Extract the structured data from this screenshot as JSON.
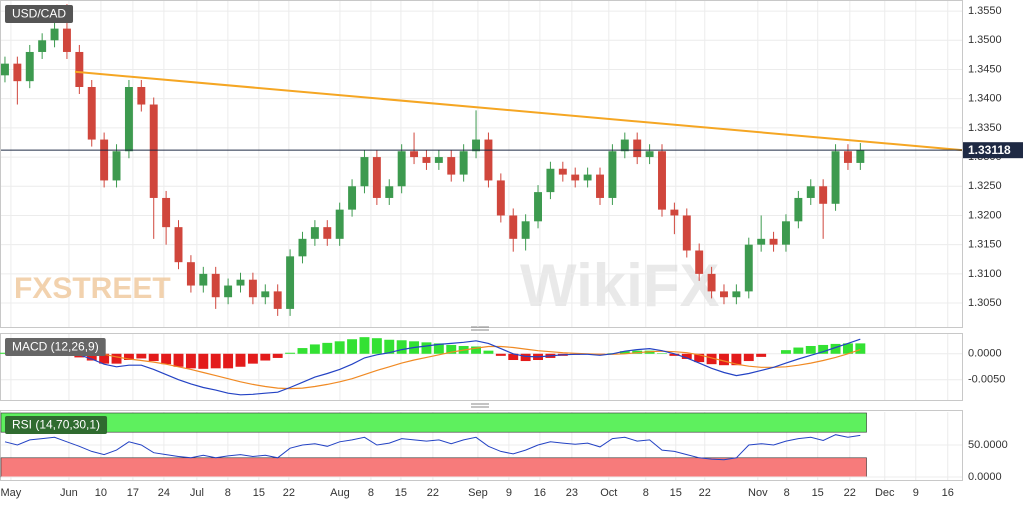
{
  "chart_data": [
    {
      "type": "candlestick",
      "title": "USD/CAD",
      "open": [
        1.344,
        1.346,
        1.343,
        1.348,
        1.35,
        1.352,
        1.348,
        1.342,
        1.333,
        1.326,
        1.331,
        1.342,
        1.339,
        1.323,
        1.318,
        1.312,
        1.308,
        1.31,
        1.306,
        1.308,
        1.309,
        1.306,
        1.307,
        1.304,
        1.313,
        1.316,
        1.318,
        1.316,
        1.321,
        1.325,
        1.33,
        1.323,
        1.325,
        1.331,
        1.33,
        1.329,
        1.33,
        1.327,
        1.331,
        1.333,
        1.326,
        1.32,
        1.316,
        1.319,
        1.324,
        1.328,
        1.327,
        1.326,
        1.327,
        1.323,
        1.331,
        1.333,
        1.33,
        1.331,
        1.321,
        1.32,
        1.314,
        1.31,
        1.307,
        1.306,
        1.307,
        1.315,
        1.316,
        1.315,
        1.319,
        1.323,
        1.325,
        1.322,
        1.331,
        1.329
      ],
      "high": [
        1.3472,
        1.3472,
        1.3492,
        1.3512,
        1.3532,
        1.3562,
        1.3492,
        1.3432,
        1.3342,
        1.3322,
        1.3432,
        1.3432,
        1.3402,
        1.3242,
        1.3192,
        1.3132,
        1.3112,
        1.3112,
        1.3092,
        1.3102,
        1.3102,
        1.3082,
        1.3082,
        1.3142,
        1.3172,
        1.3192,
        1.3192,
        1.3222,
        1.3262,
        1.3312,
        1.3312,
        1.3262,
        1.3322,
        1.3342,
        1.3312,
        1.3312,
        1.3312,
        1.3322,
        1.338,
        1.3342,
        1.3272,
        1.3212,
        1.3202,
        1.3252,
        1.3292,
        1.3292,
        1.3282,
        1.3282,
        1.3282,
        1.3322,
        1.3342,
        1.3342,
        1.3322,
        1.3322,
        1.3222,
        1.3212,
        1.3152,
        1.3112,
        1.3082,
        1.3082,
        1.3162,
        1.32,
        1.3172,
        1.3202,
        1.3242,
        1.3262,
        1.3262,
        1.3322,
        1.3322,
        1.3324
      ],
      "low": [
        1.3428,
        1.339,
        1.3418,
        1.3468,
        1.3488,
        1.3468,
        1.3408,
        1.3318,
        1.3248,
        1.3248,
        1.3298,
        1.3378,
        1.316,
        1.315,
        1.3108,
        1.3068,
        1.3068,
        1.304,
        1.3048,
        1.3068,
        1.3048,
        1.3048,
        1.3028,
        1.3028,
        1.3118,
        1.3148,
        1.3148,
        1.3148,
        1.3198,
        1.3238,
        1.3218,
        1.3218,
        1.3238,
        1.3288,
        1.3278,
        1.3278,
        1.3258,
        1.3258,
        1.3298,
        1.3248,
        1.3188,
        1.3138,
        1.314,
        1.3178,
        1.3228,
        1.3258,
        1.3248,
        1.3248,
        1.3218,
        1.3218,
        1.3298,
        1.3288,
        1.3288,
        1.3198,
        1.3168,
        1.3128,
        1.3088,
        1.3058,
        1.3048,
        1.3048,
        1.3058,
        1.3138,
        1.3138,
        1.3138,
        1.3178,
        1.3218,
        1.316,
        1.3208,
        1.3278,
        1.3278
      ],
      "close": [
        1.346,
        1.343,
        1.348,
        1.35,
        1.352,
        1.348,
        1.342,
        1.333,
        1.326,
        1.331,
        1.342,
        1.339,
        1.323,
        1.318,
        1.312,
        1.308,
        1.31,
        1.306,
        1.308,
        1.309,
        1.306,
        1.307,
        1.304,
        1.313,
        1.316,
        1.318,
        1.316,
        1.321,
        1.325,
        1.33,
        1.323,
        1.325,
        1.331,
        1.33,
        1.329,
        1.33,
        1.327,
        1.331,
        1.333,
        1.326,
        1.32,
        1.316,
        1.319,
        1.324,
        1.328,
        1.327,
        1.326,
        1.327,
        1.323,
        1.331,
        1.333,
        1.33,
        1.331,
        1.321,
        1.32,
        1.314,
        1.31,
        1.307,
        1.306,
        1.307,
        1.315,
        1.316,
        1.315,
        1.319,
        1.323,
        1.325,
        1.322,
        1.331,
        1.329,
        1.3312
      ],
      "up_color": "#3d9a4f",
      "down_color": "#d0463c",
      "xlim": [
        -0.4,
        77.2
      ],
      "xticks": [
        {
          "value": 0.48,
          "label": "May"
        },
        {
          "value": 5.16,
          "label": "Jun"
        },
        {
          "value": 7.74,
          "label": "10"
        },
        {
          "value": 10.32,
          "label": "17"
        },
        {
          "value": 12.82,
          "label": "24"
        },
        {
          "value": 15.48,
          "label": "Jul"
        },
        {
          "value": 17.98,
          "label": "8"
        },
        {
          "value": 20.48,
          "label": "15"
        },
        {
          "value": 22.9,
          "label": "22"
        },
        {
          "value": 27.02,
          "label": "Aug"
        },
        {
          "value": 29.52,
          "label": "8"
        },
        {
          "value": 31.94,
          "label": "15"
        },
        {
          "value": 34.52,
          "label": "22"
        },
        {
          "value": 38.15,
          "label": "Sep"
        },
        {
          "value": 40.65,
          "label": "9"
        },
        {
          "value": 43.15,
          "label": "16"
        },
        {
          "value": 45.73,
          "label": "23"
        },
        {
          "value": 48.71,
          "label": "Oct"
        },
        {
          "value": 51.69,
          "label": "8"
        },
        {
          "value": 54.11,
          "label": "15"
        },
        {
          "value": 56.45,
          "label": "22"
        },
        {
          "value": 60.73,
          "label": "Nov"
        },
        {
          "value": 63.06,
          "label": "8"
        },
        {
          "value": 65.56,
          "label": "15"
        },
        {
          "value": 68.15,
          "label": "22"
        },
        {
          "value": 70.97,
          "label": "Dec"
        },
        {
          "value": 73.47,
          "label": "9"
        },
        {
          "value": 76.05,
          "label": "16"
        }
      ],
      "ylim": [
        1.3009,
        1.3569
      ],
      "yticks": [
        {
          "value": 1.305,
          "label": "1.3050"
        },
        {
          "value": 1.31,
          "label": "1.3100"
        },
        {
          "value": 1.315,
          "label": "1.3150"
        },
        {
          "value": 1.32,
          "label": "1.3200"
        },
        {
          "value": 1.325,
          "label": "1.3250"
        },
        {
          "value": 1.33,
          "label": "1.3300"
        },
        {
          "value": 1.335,
          "label": "1.3350"
        },
        {
          "value": 1.34,
          "label": "1.3400"
        },
        {
          "value": 1.345,
          "label": "1.3450"
        },
        {
          "value": 1.35,
          "label": "1.3500"
        },
        {
          "value": 1.355,
          "label": "1.3550"
        }
      ],
      "trendline": {
        "x": [
          5.65,
          77.2
        ],
        "y": [
          1.3446,
          1.3312
        ],
        "color": "#f5a623"
      },
      "last_price": 1.33118,
      "watermarks": [
        "FXSTREET",
        "WikiFX"
      ]
    },
    {
      "type": "macd",
      "title": "MACD (12,26,9)",
      "histogram": [
        0.0002,
        0,
        -0.0001,
        0,
        0.0001,
        -0.0002,
        -0.0007,
        -0.0013,
        -0.0019,
        -0.0019,
        -0.0012,
        -0.0009,
        -0.0014,
        -0.002,
        -0.0025,
        -0.0028,
        -0.0029,
        -0.0028,
        -0.0028,
        -0.0025,
        -0.0019,
        -0.0013,
        -0.0008,
        0.0002,
        0.0011,
        0.0018,
        0.0021,
        0.0024,
        0.0028,
        0.0032,
        0.003,
        0.0027,
        0.0026,
        0.0024,
        0.0022,
        0.002,
        0.0017,
        0.0015,
        0.0014,
        0.0006,
        -0.0004,
        -0.0012,
        -0.0014,
        -0.0012,
        -0.0008,
        -0.0004,
        -0.0002,
        -0.0001,
        -0.0002,
        0.0001,
        0.0005,
        0.0006,
        0.0006,
        0.0001,
        -0.0004,
        -0.001,
        -0.0016,
        -0.002,
        -0.0022,
        -0.0022,
        -0.0014,
        -0.0006,
        0,
        0.0007,
        0.0012,
        0.0015,
        0.0017,
        0.0019,
        0.002,
        0.002
      ],
      "macd": [
        0.0008,
        0.0006,
        0.0005,
        0.0006,
        0.0007,
        0.0004,
        -0.0002,
        -0.001,
        -0.002,
        -0.0025,
        -0.0022,
        -0.0022,
        -0.003,
        -0.004,
        -0.005,
        -0.0058,
        -0.0065,
        -0.007,
        -0.0076,
        -0.0079,
        -0.0078,
        -0.0076,
        -0.0074,
        -0.0065,
        -0.0055,
        -0.0045,
        -0.0038,
        -0.003,
        -0.002,
        -0.0008,
        -0.0002,
        0.0002,
        0.0008,
        0.0012,
        0.0015,
        0.0018,
        0.002,
        0.0022,
        0.0025,
        0.002,
        0.001,
        0,
        -0.0005,
        -0.0006,
        -0.0004,
        -0.0002,
        -0.0001,
        -0.0001,
        -0.0003,
        0,
        0.0005,
        0.0008,
        0.001,
        0.0006,
        0,
        -0.0008,
        -0.0018,
        -0.0028,
        -0.0036,
        -0.0042,
        -0.0038,
        -0.0032,
        -0.0026,
        -0.0018,
        -0.001,
        -0.0003,
        0.0004,
        0.0012,
        0.002,
        0.0028
      ],
      "signal": [
        0.0006,
        0.0006,
        0.0006,
        0.0006,
        0.0006,
        0.0006,
        0.0005,
        0.0003,
        -0.0001,
        -0.0006,
        -0.001,
        -0.0013,
        -0.0016,
        -0.002,
        -0.0025,
        -0.003,
        -0.0036,
        -0.0042,
        -0.0048,
        -0.0054,
        -0.0059,
        -0.0063,
        -0.0066,
        -0.0067,
        -0.0066,
        -0.0063,
        -0.0059,
        -0.0054,
        -0.0048,
        -0.004,
        -0.0032,
        -0.0025,
        -0.0018,
        -0.0012,
        -0.0007,
        -0.0002,
        0.0003,
        0.0007,
        0.0011,
        0.0014,
        0.0014,
        0.0012,
        0.0009,
        0.0006,
        0.0004,
        0.0002,
        0.0001,
        0,
        -0.0001,
        -0.0001,
        0,
        0.0002,
        0.0004,
        0.0005,
        0.0004,
        0.0002,
        -0.0002,
        -0.0008,
        -0.0014,
        -0.002,
        -0.0024,
        -0.0026,
        -0.0026,
        -0.0025,
        -0.0022,
        -0.0018,
        -0.0013,
        -0.0007,
        0,
        0.0008
      ],
      "hist_up_color": "#33e133",
      "hist_down_color": "#e31b1b",
      "macd_color": "#2443c4",
      "signal_color": "#f08a24",
      "ylim": [
        -0.0089,
        0.004
      ],
      "yticks": [
        {
          "value": 0,
          "label": "0.0000"
        },
        {
          "value": -0.005,
          "label": "-0.0050"
        }
      ]
    },
    {
      "type": "rsi",
      "title": "RSI (14,70,30,1)",
      "values": [
        55,
        50,
        58,
        60,
        62,
        55,
        48,
        40,
        35,
        42,
        55,
        50,
        38,
        35,
        32,
        30,
        34,
        30,
        33,
        35,
        32,
        34,
        30,
        45,
        50,
        52,
        48,
        55,
        58,
        62,
        50,
        53,
        60,
        58,
        56,
        58,
        52,
        58,
        62,
        48,
        40,
        36,
        42,
        50,
        55,
        53,
        51,
        53,
        47,
        60,
        62,
        56,
        58,
        42,
        40,
        35,
        30,
        28,
        27,
        30,
        50,
        52,
        50,
        56,
        60,
        62,
        57,
        66,
        62,
        65
      ],
      "color": "#2443c4",
      "bands": [
        {
          "from": 70,
          "to": 100,
          "color": "#5ef05e"
        },
        {
          "from": 0,
          "to": 30,
          "color": "#f77b7b"
        }
      ],
      "ylim": [
        -4.7,
        103.1
      ],
      "yticks": [
        {
          "value": 50,
          "label": "50.0000"
        },
        {
          "value": 0,
          "label": "0.0000"
        }
      ]
    }
  ]
}
